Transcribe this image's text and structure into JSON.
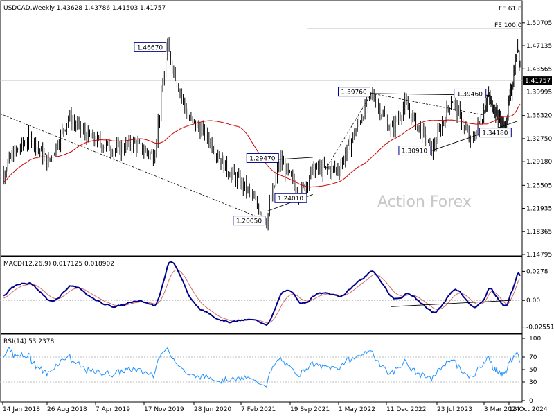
{
  "chart_data": [
    {
      "type": "candlestick",
      "title": "USDCAD,Weekly  1.43628 1.43786 1.41503 1.41757",
      "symbol": "USDCAD",
      "timeframe": "Weekly",
      "ohlc_last": {
        "open": 1.43628,
        "high": 1.43786,
        "low": 1.41503,
        "close": 1.41757
      },
      "current_price_label": "1.41757",
      "ylim": [
        1.14795,
        1.5305
      ],
      "y_ticks": [
        "1.50705",
        "1.47135",
        "1.43565",
        "1.39995",
        "1.36320",
        "1.32750",
        "1.29180",
        "1.25505",
        "1.21935",
        "1.18365",
        "1.14795"
      ],
      "x_ticks": [
        "14 Jan 2018",
        "26 Aug 2018",
        "7 Apr 2019",
        "17 Nov 2019",
        "28 Jun 2020",
        "7 Feb 2021",
        "19 Sep 2021",
        "1 May 2022",
        "11 Dec 2022",
        "23 Jul 2023",
        "3 Mar 2024",
        "13 Oct 2024"
      ],
      "watermark": "Action Forex",
      "fib_labels": [
        "FE 61.8",
        "FE 100.0"
      ],
      "fe_100_level": 1.4985,
      "annotations": [
        {
          "text": "1.46670",
          "value": 1.4667,
          "date": "2020-03"
        },
        {
          "text": "1.20050",
          "value": 1.2005,
          "date": "2021-06"
        },
        {
          "text": "1.29470",
          "value": 1.2947,
          "date": "2021-08"
        },
        {
          "text": "1.24010",
          "value": 1.2401,
          "date": "2021-11"
        },
        {
          "text": "1.39760",
          "value": 1.3976,
          "date": "2022-10"
        },
        {
          "text": "1.30910",
          "value": 1.3091,
          "date": "2023-07"
        },
        {
          "text": "1.39460",
          "value": 1.3946,
          "date": "2024-04"
        },
        {
          "text": "1.34180",
          "value": 1.3418,
          "date": "2024-09"
        }
      ],
      "series": [
        {
          "name": "price",
          "approx_path": [
            {
              "x": "2017-12",
              "y": 1.25
            },
            {
              "x": "2018-03",
              "y": 1.3
            },
            {
              "x": "2018-06",
              "y": 1.33
            },
            {
              "x": "2018-09",
              "y": 1.29
            },
            {
              "x": "2018-12",
              "y": 1.36
            },
            {
              "x": "2019-03",
              "y": 1.33
            },
            {
              "x": "2019-07",
              "y": 1.31
            },
            {
              "x": "2019-10",
              "y": 1.32
            },
            {
              "x": "2020-01",
              "y": 1.3
            },
            {
              "x": "2020-03",
              "y": 1.4667
            },
            {
              "x": "2020-06",
              "y": 1.36
            },
            {
              "x": "2020-09",
              "y": 1.33
            },
            {
              "x": "2020-12",
              "y": 1.28
            },
            {
              "x": "2021-03",
              "y": 1.25
            },
            {
              "x": "2021-06",
              "y": 1.2005
            },
            {
              "x": "2021-08",
              "y": 1.2947
            },
            {
              "x": "2021-11",
              "y": 1.2401
            },
            {
              "x": "2022-01",
              "y": 1.28
            },
            {
              "x": "2022-05",
              "y": 1.28
            },
            {
              "x": "2022-10",
              "y": 1.3976
            },
            {
              "x": "2023-01",
              "y": 1.34
            },
            {
              "x": "2023-03",
              "y": 1.38
            },
            {
              "x": "2023-07",
              "y": 1.3091
            },
            {
              "x": "2023-10",
              "y": 1.39
            },
            {
              "x": "2024-01",
              "y": 1.32
            },
            {
              "x": "2024-04",
              "y": 1.3946
            },
            {
              "x": "2024-09",
              "y": 1.3418
            },
            {
              "x": "2024-11",
              "y": 1.4
            },
            {
              "x": "2025-01",
              "y": 1.475
            },
            {
              "x": "2025-02",
              "y": 1.4176
            }
          ]
        }
      ]
    },
    {
      "type": "line",
      "title": "MACD(12,26,9) 0.017125 0.018902",
      "y_ticks": [
        "0.0278",
        "0.00",
        "-0.025511"
      ],
      "ylim": [
        -0.0291,
        0.0314
      ]
    },
    {
      "type": "line",
      "title": "RSI(14) 53.2378",
      "y_ticks": [
        "100",
        "70",
        "50",
        "30",
        "0"
      ],
      "ylim": [
        0,
        100
      ]
    }
  ],
  "colors": {
    "price_bars": "#000000",
    "ma_line": "#cc0000",
    "macd_line": "#00008b",
    "macd_signal": "#d46a6a",
    "rsi_line": "#1e90ff",
    "label_box_border": "#00008b"
  }
}
